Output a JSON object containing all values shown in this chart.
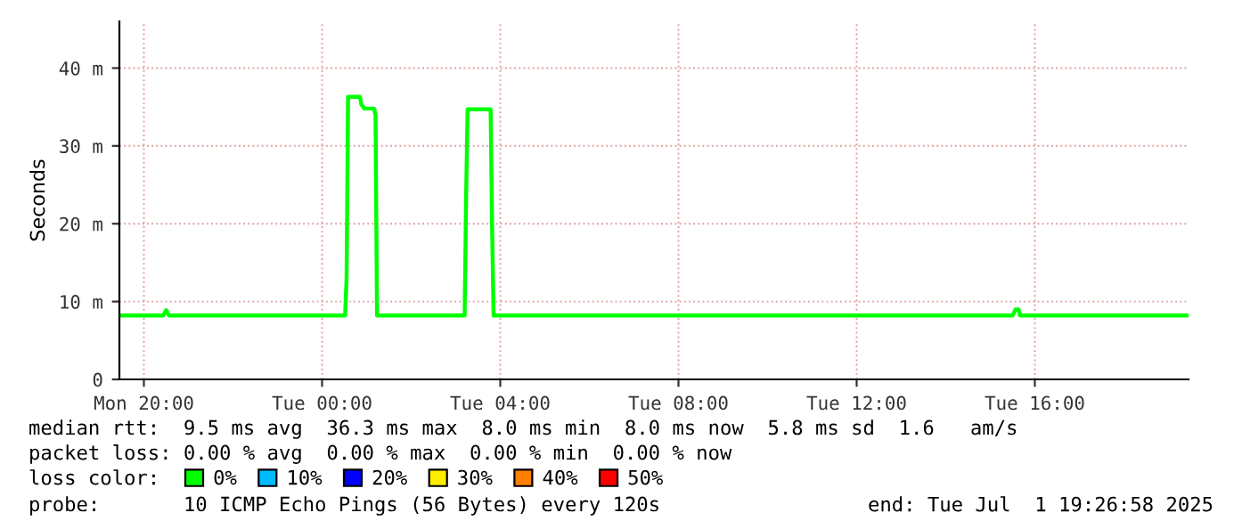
{
  "chart_data": {
    "type": "line",
    "ylabel": "Seconds",
    "legend_title": "loss color:",
    "legend": "bottom",
    "grid": true,
    "marker": "none",
    "line_style": "solid",
    "xlim": [
      "2025-06-30T19:27",
      "2025-07-01T19:27"
    ],
    "xticks": [
      {
        "value": "2025-06-30T20:00",
        "label": "Mon 20:00"
      },
      {
        "value": "2025-07-01T00:00",
        "label": "Tue 00:00"
      },
      {
        "value": "2025-07-01T04:00",
        "label": "Tue 04:00"
      },
      {
        "value": "2025-07-01T08:00",
        "label": "Tue 08:00"
      },
      {
        "value": "2025-07-01T12:00",
        "label": "Tue 12:00"
      },
      {
        "value": "2025-07-01T16:00",
        "label": "Tue 16:00"
      }
    ],
    "ylim": [
      0,
      46
    ],
    "yticks": [
      0,
      {
        "value": 10,
        "label": "10 m"
      },
      {
        "value": 20,
        "label": "20 m"
      },
      {
        "value": 30,
        "label": "30 m"
      },
      {
        "value": 40,
        "label": "40 m"
      }
    ],
    "series": [
      {
        "name": "0%",
        "color": "#00ff00",
        "x": [
          "2025-06-30T19:27",
          "2025-06-30T20:26",
          "2025-06-30T20:30",
          "2025-06-30T20:34",
          "2025-07-01T00:31",
          "2025-07-01T00:33",
          "2025-07-01T00:35",
          "2025-07-01T00:51",
          "2025-07-01T00:53",
          "2025-07-01T00:57",
          "2025-07-01T01:10",
          "2025-07-01T01:12",
          "2025-07-01T01:14",
          "2025-07-01T03:12",
          "2025-07-01T03:14",
          "2025-07-01T03:16",
          "2025-07-01T03:47",
          "2025-07-01T03:49",
          "2025-07-01T03:51",
          "2025-07-01T15:30",
          "2025-07-01T15:34",
          "2025-07-01T15:38",
          "2025-07-01T15:40",
          "2025-07-01T19:27"
        ],
        "values": [
          8.2,
          8.2,
          8.9,
          8.2,
          8.2,
          13,
          36.3,
          36.3,
          35.3,
          34.8,
          34.8,
          34,
          8.2,
          8.2,
          23.5,
          34.7,
          34.7,
          19.5,
          8.2,
          8.2,
          9,
          9,
          8.2,
          8.2
        ]
      },
      {
        "name": "10%",
        "color": "#00bbff"
      },
      {
        "name": "20%",
        "color": "#0000ff"
      },
      {
        "name": "30%",
        "color": "#ffee00"
      },
      {
        "name": "40%",
        "color": "#ff8000"
      },
      {
        "name": "50%",
        "color": "#ff0000"
      }
    ],
    "annotations": [
      "median rtt:  9.5 ms avg  36.3 ms max  8.0 ms min  8.0 ms now  5.8 ms sd  1.6   am/s",
      "packet loss: 0.00 % avg  0.00 % max  0.00 % min  0.00 % now",
      "probe:       10 ICMP Echo Pings (56 Bytes) every 120s",
      "end: Tue Jul  1 19:26:58 2025"
    ]
  }
}
